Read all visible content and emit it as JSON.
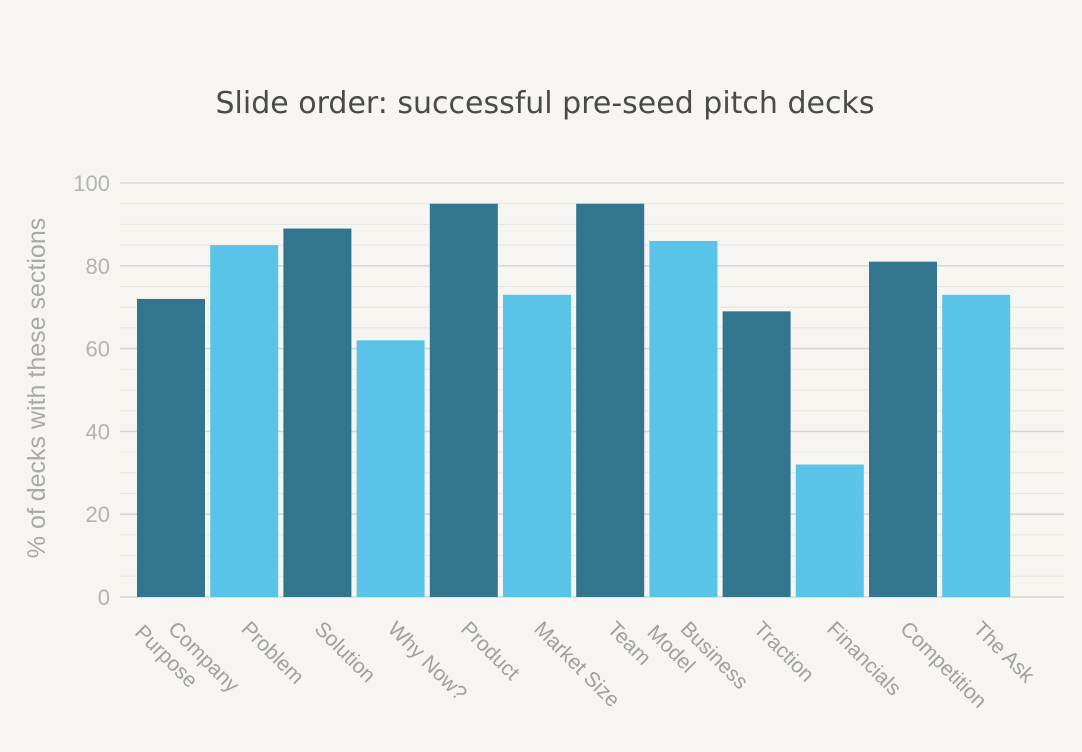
{
  "chart_data": {
    "type": "bar",
    "title": "Slide order: successful pre-seed pitch decks",
    "xlabel": "",
    "ylabel": "% of decks with these sections",
    "ylim": [
      0,
      100
    ],
    "yticks": [
      0,
      20,
      40,
      60,
      80,
      100
    ],
    "grid": true,
    "categories": [
      "Company Purpose",
      "Problem",
      "Solution",
      "Why Now?",
      "Product",
      "Market Size",
      "Team",
      "Business Model",
      "Traction",
      "Financials",
      "Competition",
      "The Ask"
    ],
    "values": [
      72,
      85,
      89,
      62,
      95,
      73,
      95,
      86,
      69,
      32,
      81,
      73
    ],
    "colors": {
      "dark": "#31758f",
      "light": "#5ac4e8"
    }
  }
}
